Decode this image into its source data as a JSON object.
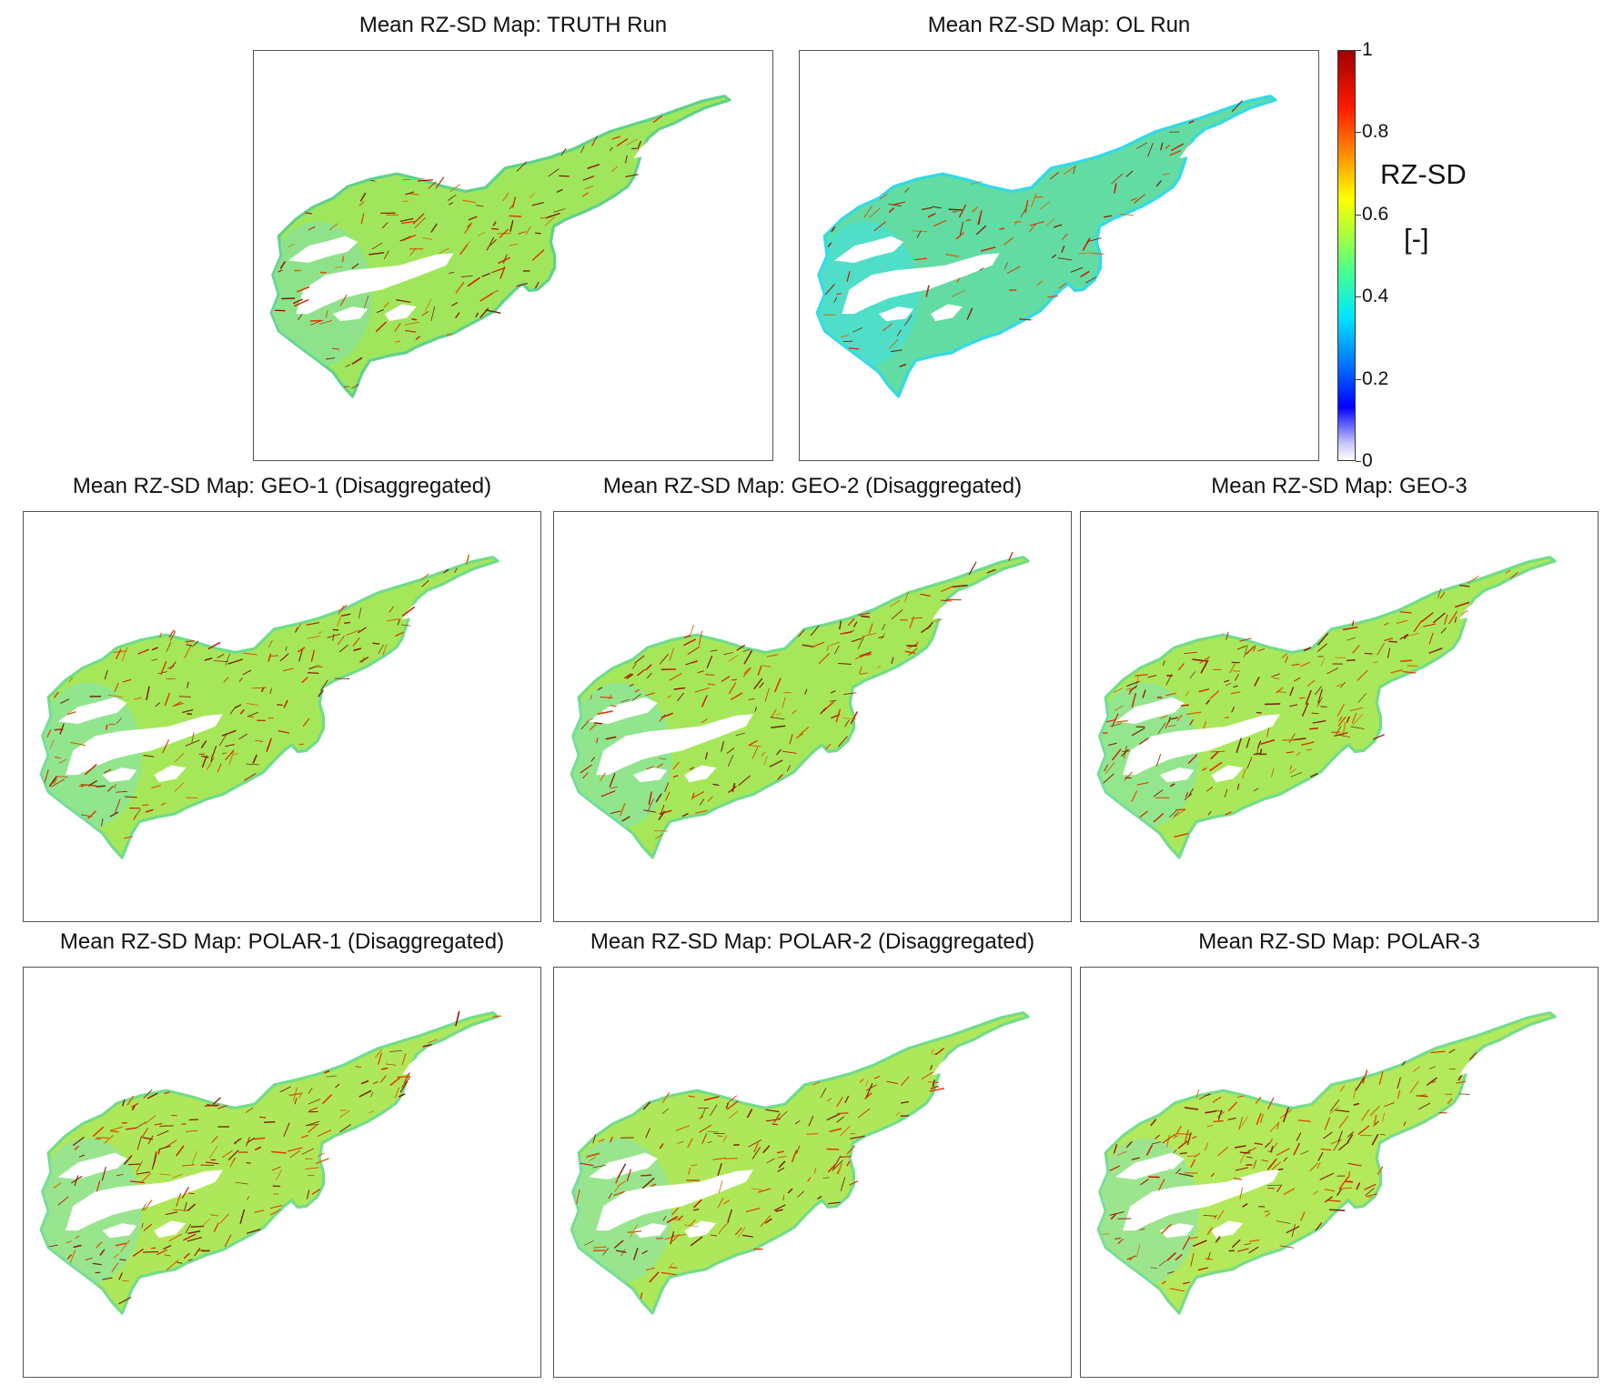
{
  "panels": [
    {
      "id": "truth",
      "title": "Mean RZ-SD Map: TRUTH Run",
      "fill": "#9fe65c",
      "edge": "#5fd28a",
      "low_tint": "#7fe0b0",
      "stream_density": 1.0
    },
    {
      "id": "ol",
      "title": "Mean RZ-SD Map: OL Run",
      "fill": "#62dca2",
      "edge": "#33d9e6",
      "low_tint": "#3fe0e6",
      "stream_density": 0.7
    },
    {
      "id": "geo1",
      "title": "Mean RZ-SD Map: GEO-1 (Disaggregated)",
      "fill": "#a6e75a",
      "edge": "#6fdc8a",
      "low_tint": "#80e3b8",
      "stream_density": 1.2
    },
    {
      "id": "geo2",
      "title": "Mean RZ-SD Map: GEO-2 (Disaggregated)",
      "fill": "#a6e75a",
      "edge": "#6fdc8a",
      "low_tint": "#80e3b8",
      "stream_density": 1.2
    },
    {
      "id": "geo3",
      "title": "Mean RZ-SD Map: GEO-3",
      "fill": "#a9e85a",
      "edge": "#72dc8a",
      "low_tint": "#84e3b6",
      "stream_density": 1.25
    },
    {
      "id": "polar1",
      "title": "Mean RZ-SD Map: POLAR-1 (Disaggregated)",
      "fill": "#aee85a",
      "edge": "#72dc8a",
      "low_tint": "#86e2ba",
      "stream_density": 1.3
    },
    {
      "id": "polar2",
      "title": "Mean RZ-SD Map: POLAR-2 (Disaggregated)",
      "fill": "#aee85a",
      "edge": "#72dc8a",
      "low_tint": "#86e2ba",
      "stream_density": 1.3
    },
    {
      "id": "polar3",
      "title": "Mean RZ-SD Map: POLAR-3",
      "fill": "#b3e95a",
      "edge": "#76dc8a",
      "low_tint": "#8ae2b8",
      "stream_density": 1.35
    }
  ],
  "colorbar": {
    "label": "RZ-SD",
    "unit": "[-]",
    "min": 0,
    "max": 1,
    "ticks": [
      {
        "value": 1,
        "label": "1"
      },
      {
        "value": 0.8,
        "label": "0.8"
      },
      {
        "value": 0.6,
        "label": "0.6"
      },
      {
        "value": 0.4,
        "label": "0.4"
      },
      {
        "value": 0.2,
        "label": "0.2"
      },
      {
        "value": 0,
        "label": "0"
      }
    ],
    "colormap": "jet-white-to-darkred"
  }
}
